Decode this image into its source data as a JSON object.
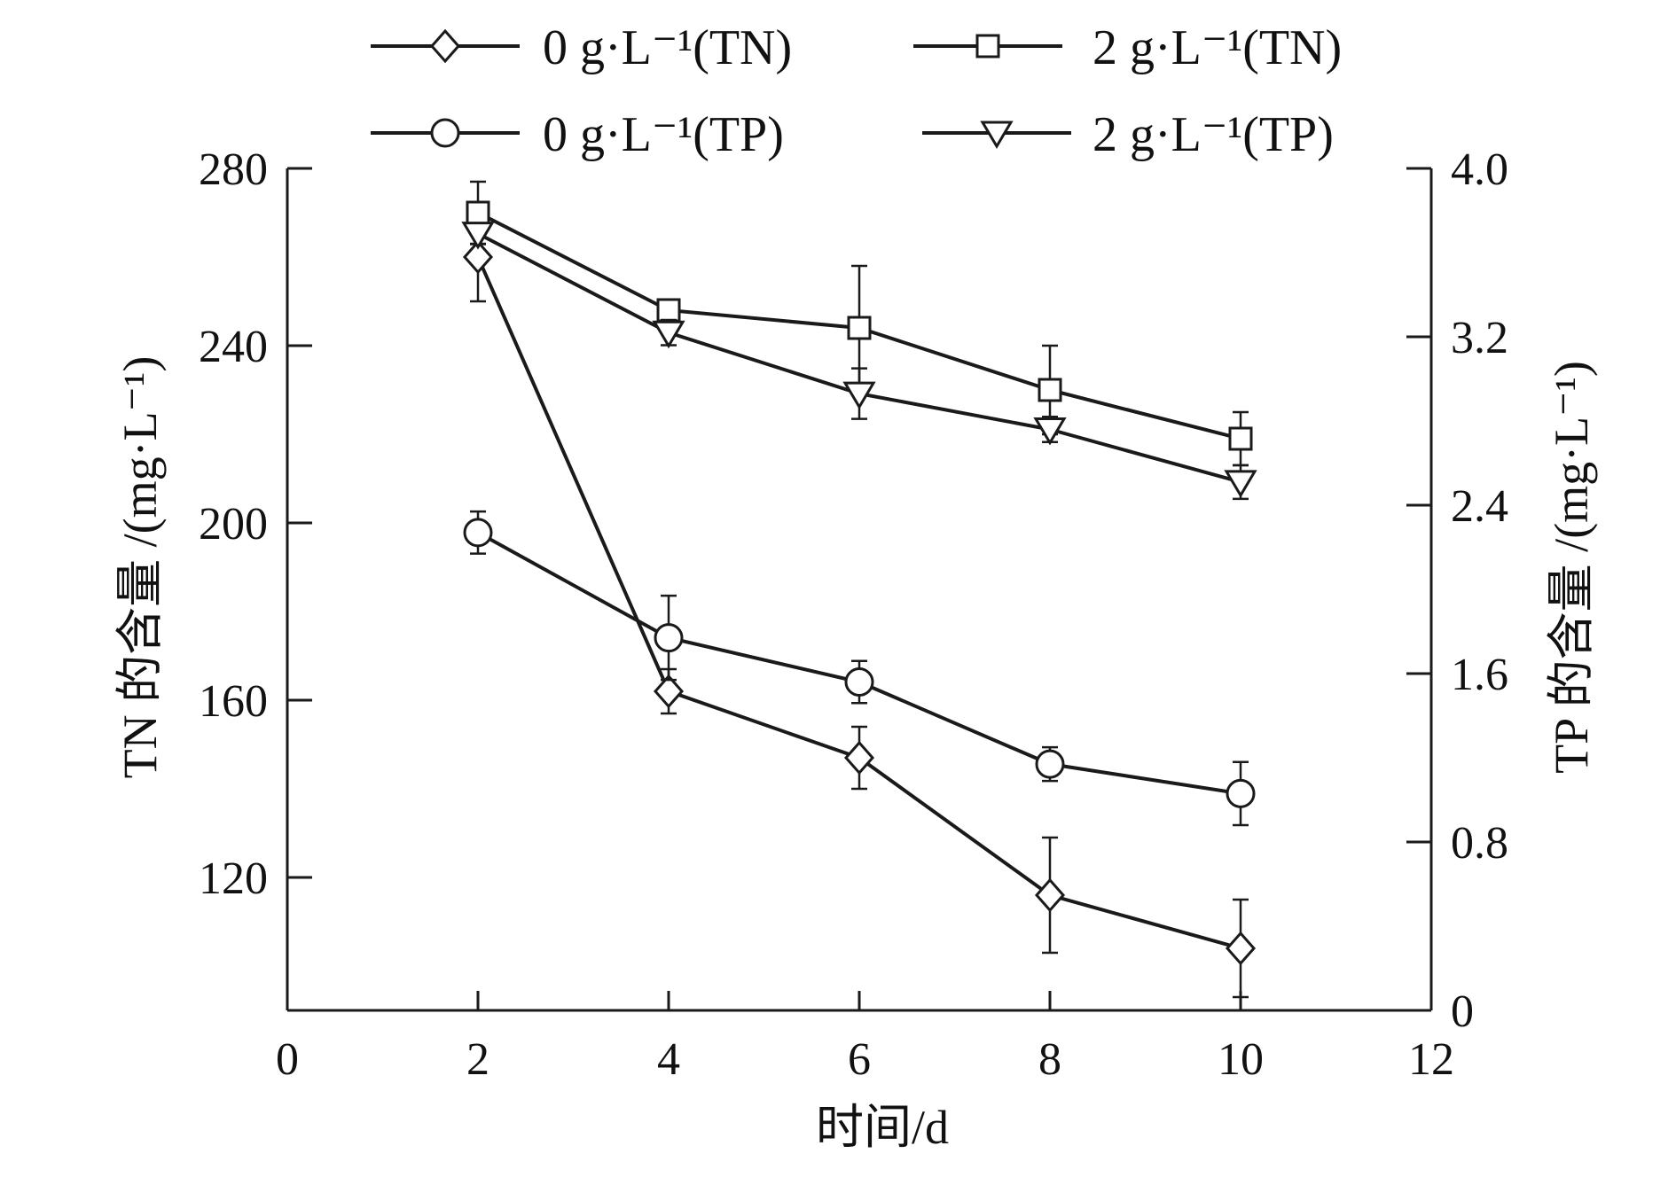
{
  "chart_data": {
    "type": "line",
    "xlabel": "时间/d",
    "ylabel_left": "TN 的含量 /(mg·L⁻¹)",
    "ylabel_right": "TP 的含量 /(mg·L⁻¹)",
    "xlim": [
      0,
      12
    ],
    "ylim_left": [
      90,
      280
    ],
    "ylim_right": [
      0,
      4.0
    ],
    "x_ticks": [
      "0",
      "2",
      "4",
      "6",
      "8",
      "10",
      "12"
    ],
    "y_ticks_left": [
      "120",
      "160",
      "200",
      "240",
      "280"
    ],
    "y_ticks_right": [
      "0",
      "0.8",
      "1.6",
      "2.4",
      "3.2",
      "4.0"
    ],
    "grid": false,
    "legend_position": "top",
    "x": [
      2,
      4,
      6,
      8,
      10
    ],
    "series": [
      {
        "name": "0 g·L⁻¹(TN)",
        "axis": "left",
        "marker": "diamond",
        "values": [
          260,
          162,
          147,
          116,
          104
        ],
        "errors": [
          10,
          5,
          7,
          13,
          11
        ]
      },
      {
        "name": "2 g·L⁻¹(TN)",
        "axis": "left",
        "marker": "square",
        "values": [
          270,
          248,
          244,
          230,
          219
        ],
        "errors": [
          7,
          2,
          14,
          10,
          6
        ]
      },
      {
        "name": "0 g·L⁻¹(TP)",
        "axis": "right",
        "marker": "circle",
        "values": [
          2.27,
          1.77,
          1.56,
          1.17,
          1.03
        ],
        "errors": [
          0.1,
          0.2,
          0.1,
          0.08,
          0.15
        ]
      },
      {
        "name": "2 g·L⁻¹(TP)",
        "axis": "right",
        "marker": "triangle-down",
        "values": [
          3.69,
          3.22,
          2.93,
          2.76,
          2.51
        ],
        "errors": [
          0.05,
          0.06,
          0.12,
          0.06,
          0.08
        ]
      }
    ],
    "colors": {
      "line": "#1a1a1a",
      "marker_fill": "#ffffff"
    }
  }
}
